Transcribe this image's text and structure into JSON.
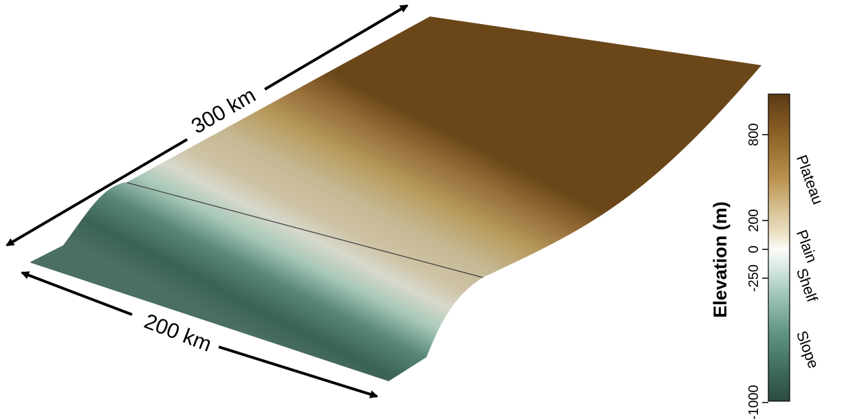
{
  "dimensions": {
    "length_label": "300 km",
    "width_label": "200 km"
  },
  "colorbar": {
    "title": "Elevation (m)",
    "ticks": [
      {
        "value": 800,
        "label": "800"
      },
      {
        "value": 200,
        "label": "200"
      },
      {
        "value": 0,
        "label": "0"
      },
      {
        "value": -250,
        "label": "-250"
      },
      {
        "value": -1000,
        "label": "-1000"
      }
    ],
    "zones": [
      "Plateau",
      "Plain",
      "Shelf",
      "Slope"
    ],
    "colors": {
      "deep": "#2f4f45",
      "slope": "#3f6b5e",
      "shelf": "#9cc6b6",
      "sea_level": "#f7f7f4",
      "plain": "#ddd2b4",
      "plateau_low": "#c8a965",
      "plateau_high": "#6a4418"
    }
  }
}
